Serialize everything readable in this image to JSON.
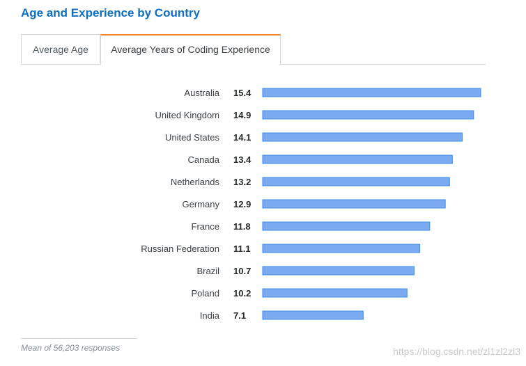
{
  "page": {
    "title": "Age and Experience by Country",
    "footnote": "Mean of 56,203 responses",
    "watermark": "https://blog.csdn.net/zl1zl2zl3"
  },
  "tabs": [
    {
      "label": "Average Age",
      "active": false
    },
    {
      "label": "Average Years of Coding Experience",
      "active": true
    }
  ],
  "colors": {
    "bar_fill": "#7aaaf0",
    "bar_stroke": "#3f8fe6",
    "title": "#0c6ec4",
    "tab_active_border": "#f48024"
  },
  "chart_data": {
    "type": "bar",
    "orientation": "horizontal",
    "categories": [
      "Australia",
      "United Kingdom",
      "United States",
      "Canada",
      "Netherlands",
      "Germany",
      "France",
      "Russian Federation",
      "Brazil",
      "Poland",
      "India"
    ],
    "values": [
      15.4,
      14.9,
      14.1,
      13.4,
      13.2,
      12.9,
      11.8,
      11.1,
      10.7,
      10.2,
      7.1
    ],
    "xlim": [
      0,
      15.4
    ],
    "data_labels": true,
    "grid": false,
    "legend": "none"
  }
}
